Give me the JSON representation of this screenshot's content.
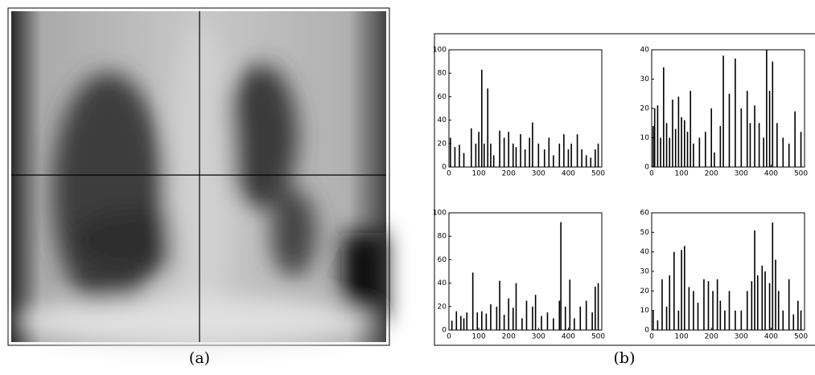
{
  "captions": [
    "(a)",
    "(b)"
  ],
  "chart_data": [
    {
      "type": "bar",
      "xlim": [
        0,
        512
      ],
      "xticks": [
        0,
        100,
        200,
        300,
        400,
        500
      ],
      "ylim": [
        0,
        100
      ],
      "yticks": [
        0,
        20,
        40,
        60,
        80,
        100
      ],
      "color": "#000000",
      "x": [
        5,
        20,
        35,
        50,
        75,
        90,
        100,
        110,
        118,
        130,
        140,
        150,
        170,
        185,
        200,
        215,
        225,
        240,
        255,
        270,
        280,
        300,
        320,
        335,
        350,
        370,
        385,
        400,
        410,
        430,
        445,
        460,
        475,
        490,
        500
      ],
      "values": [
        25,
        17,
        19,
        12,
        33,
        20,
        30,
        83,
        20,
        67,
        20,
        10,
        31,
        25,
        30,
        20,
        17,
        28,
        15,
        25,
        38,
        20,
        15,
        25,
        10,
        20,
        28,
        15,
        20,
        28,
        15,
        10,
        8,
        15,
        20
      ]
    },
    {
      "type": "bar",
      "xlim": [
        0,
        512
      ],
      "xticks": [
        0,
        100,
        200,
        300,
        400,
        500
      ],
      "ylim": [
        0,
        40
      ],
      "yticks": [
        0,
        10,
        20,
        30,
        40
      ],
      "color": "#000000",
      "x": [
        5,
        10,
        20,
        30,
        40,
        50,
        60,
        70,
        80,
        90,
        100,
        110,
        120,
        130,
        140,
        160,
        180,
        200,
        210,
        230,
        240,
        260,
        280,
        300,
        320,
        330,
        345,
        360,
        375,
        385,
        395,
        405,
        420,
        440,
        460,
        480,
        500
      ],
      "values": [
        14,
        20,
        21,
        10,
        34,
        15,
        10,
        23,
        13,
        24,
        17,
        16,
        12,
        26,
        8,
        10,
        12,
        20,
        5,
        14,
        38,
        25,
        37,
        20,
        26,
        15,
        21,
        15,
        10,
        40,
        26,
        36,
        15,
        10,
        8,
        19,
        12
      ]
    },
    {
      "type": "bar",
      "xlim": [
        0,
        512
      ],
      "xticks": [
        0,
        100,
        200,
        300,
        400,
        500
      ],
      "ylim": [
        0,
        100
      ],
      "yticks": [
        0,
        20,
        40,
        60,
        80,
        100
      ],
      "color": "#000000",
      "x": [
        10,
        25,
        40,
        50,
        60,
        80,
        95,
        110,
        125,
        140,
        160,
        170,
        185,
        200,
        215,
        225,
        245,
        260,
        280,
        290,
        310,
        330,
        350,
        370,
        375,
        390,
        405,
        420,
        440,
        460,
        480,
        490,
        500
      ],
      "values": [
        8,
        16,
        12,
        10,
        15,
        49,
        15,
        16,
        14,
        22,
        20,
        42,
        13,
        27,
        19,
        40,
        10,
        25,
        20,
        30,
        12,
        15,
        10,
        25,
        92,
        20,
        43,
        10,
        20,
        25,
        15,
        37,
        40
      ]
    },
    {
      "type": "bar",
      "xlim": [
        0,
        512
      ],
      "xticks": [
        0,
        100,
        200,
        300,
        400,
        500
      ],
      "ylim": [
        0,
        60
      ],
      "yticks": [
        0,
        10,
        20,
        30,
        40,
        50,
        60
      ],
      "color": "#000000",
      "x": [
        5,
        20,
        35,
        50,
        60,
        75,
        90,
        100,
        110,
        125,
        140,
        155,
        175,
        190,
        205,
        220,
        230,
        245,
        260,
        280,
        300,
        320,
        335,
        345,
        355,
        370,
        380,
        395,
        405,
        415,
        425,
        440,
        460,
        475,
        490,
        500
      ],
      "values": [
        10,
        5,
        26,
        12,
        28,
        40,
        10,
        41,
        43,
        22,
        20,
        14,
        26,
        25,
        20,
        26,
        15,
        10,
        20,
        10,
        10,
        20,
        25,
        51,
        28,
        33,
        30,
        24,
        55,
        36,
        20,
        10,
        26,
        8,
        15,
        10
      ]
    }
  ]
}
